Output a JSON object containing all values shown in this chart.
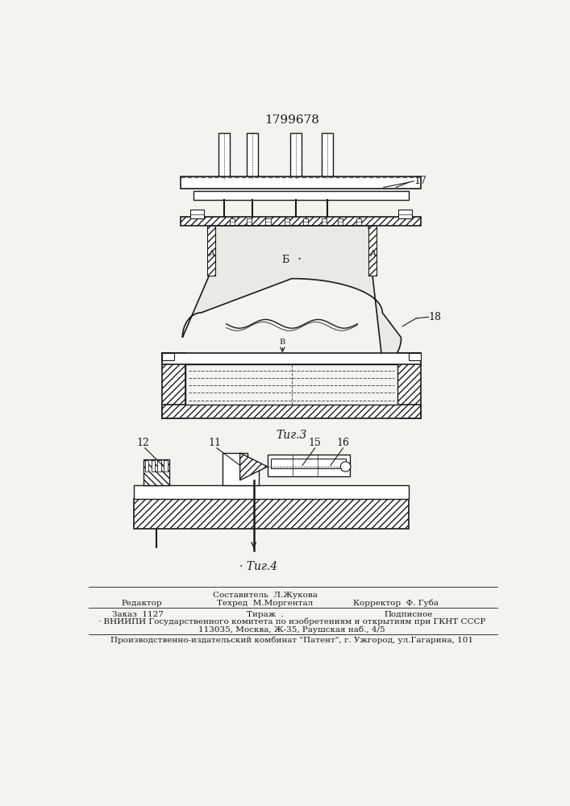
{
  "patent_number": "1799678",
  "background_color": "#f5f3ef",
  "line_color": "#1a1a1a",
  "fig3_caption": "Τиг.3",
  "fig4_caption": "Τиг.4",
  "label_17": "17",
  "label_18": "18",
  "label_A": "A",
  "label_B": "B",
  "label_b_cyr": "Б",
  "label_12": "12",
  "label_11": "11",
  "label_15": "15",
  "label_16": "16",
  "footer_line1_left": "Редактор",
  "footer_line1_mid": "Составитель  Л.Жукова",
  "footer_line2_mid": "Техред  М.Моргентал",
  "footer_line1_right": "Корректор  Ф. Губа",
  "footer_zakaz": "Заказ  1127",
  "footer_tiraj": "Тираж  .",
  "footer_podpisnoe": "Подписное",
  "footer_vniiipi": "ВНИИПИ Государственного комитета по изобретениям и открытиям при ГКНТ СССР",
  "footer_address": "113035, Москва, Ж-35, Раушская наб., 4/5",
  "footer_patent": "Производственно-издательский комбинат \"Патент\", г. Ужгород, ул.Гагарина, 101"
}
